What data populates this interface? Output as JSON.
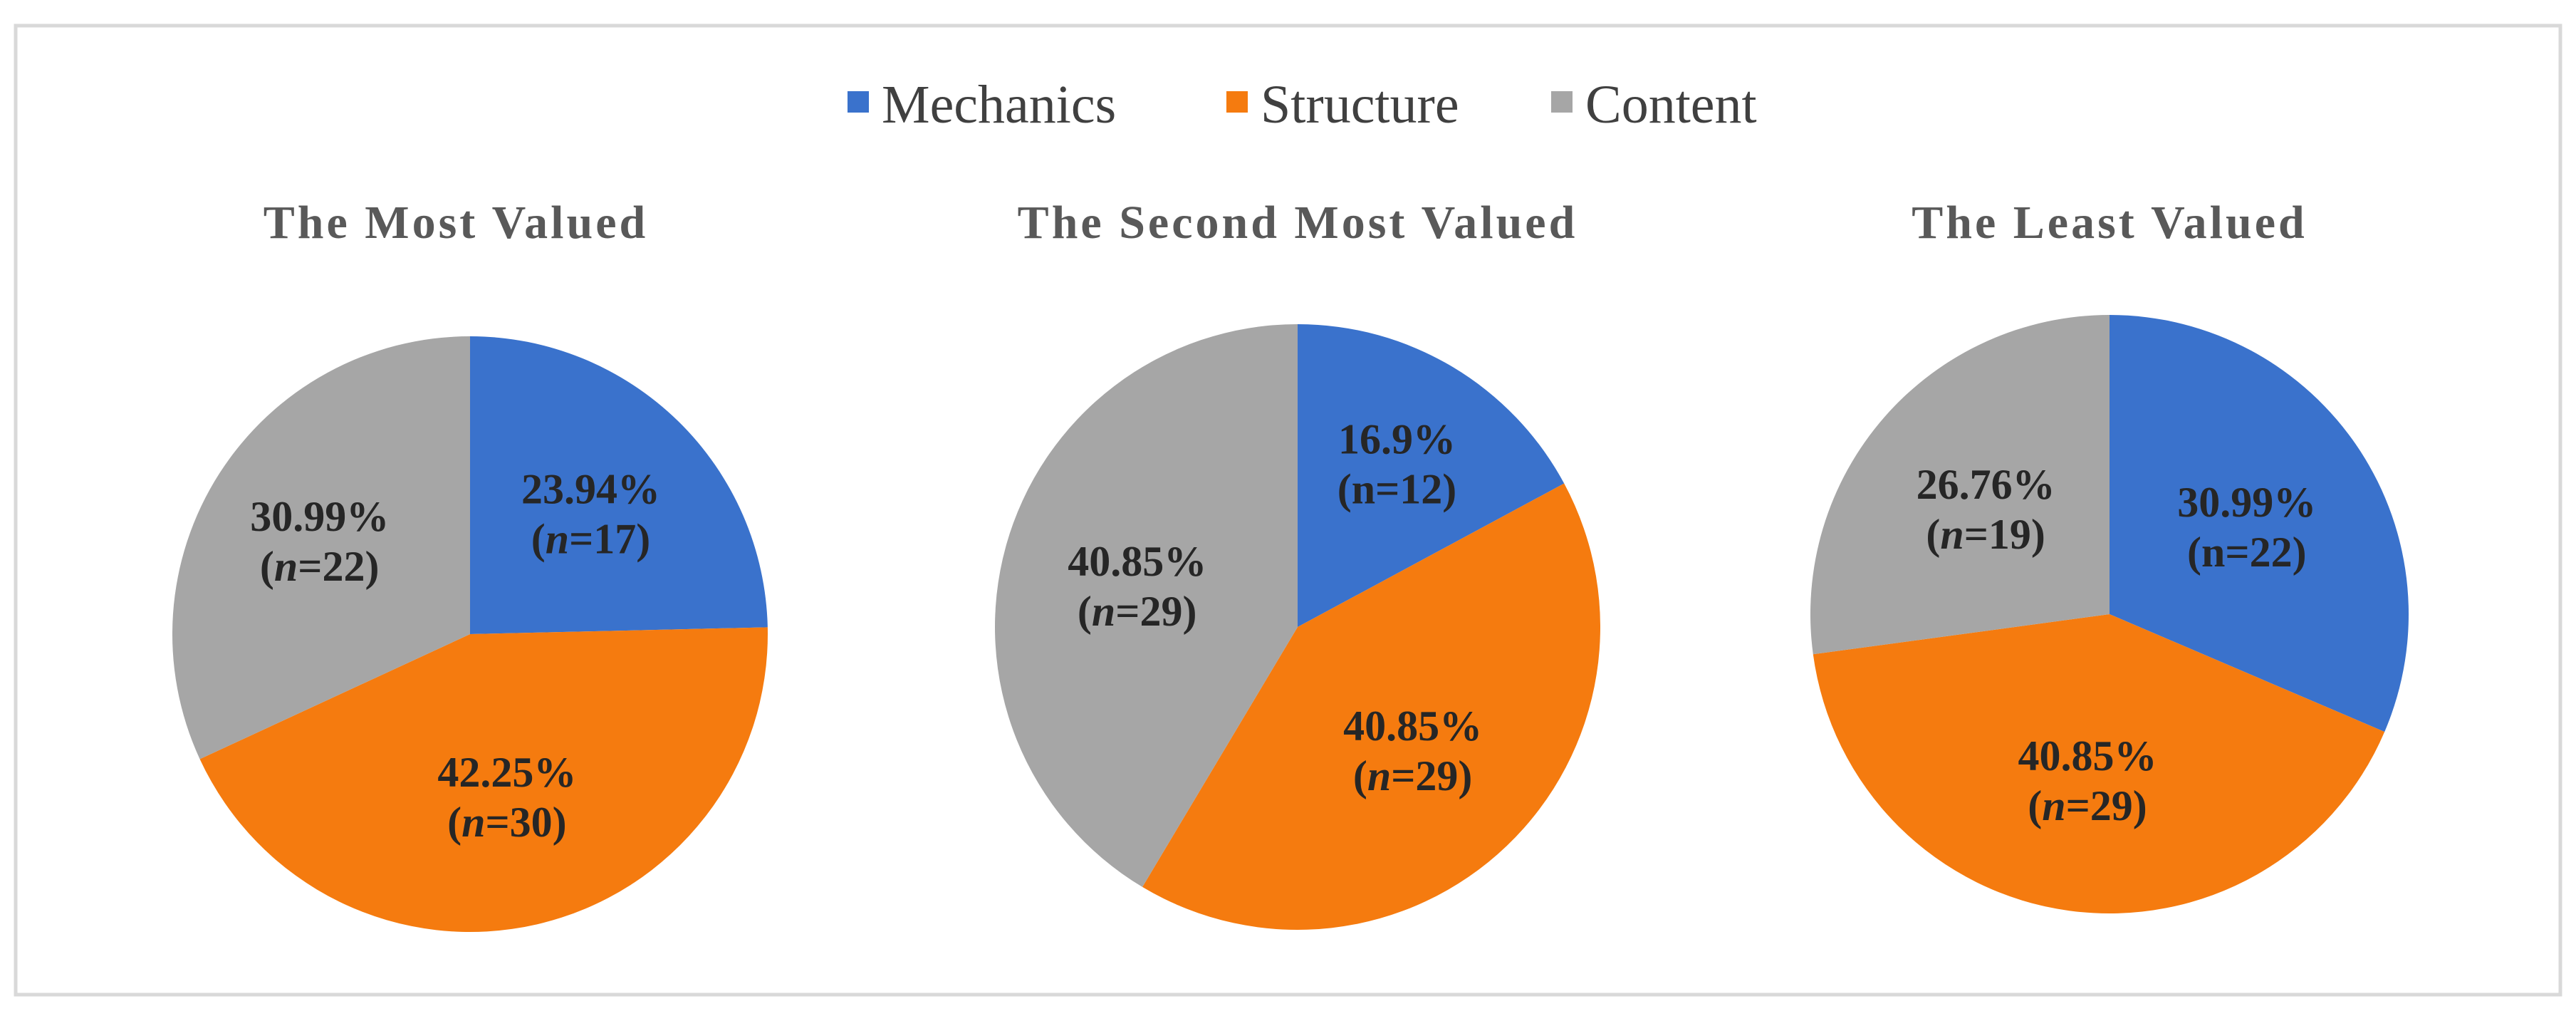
{
  "legend": {
    "placement": "top-center",
    "items": [
      {
        "label": "Mechanics",
        "color": "#3a72cc"
      },
      {
        "label": "Structure",
        "color": "#f57b0f"
      },
      {
        "label": "Content",
        "color": "#a6a6a6"
      }
    ]
  },
  "chart_data": [
    {
      "type": "pie",
      "title": "The Most Valued",
      "categories": [
        "Mechanics",
        "Structure",
        "Content"
      ],
      "values": [
        23.94,
        42.25,
        30.99
      ],
      "counts": [
        17,
        30,
        22
      ],
      "labels": [
        {
          "pct": "23.94%",
          "n": "17"
        },
        {
          "pct": "42.25%",
          "n": "30"
        },
        {
          "pct": "30.99%",
          "n": "22"
        }
      ],
      "label_n_italic": [
        true,
        true,
        true
      ]
    },
    {
      "type": "pie",
      "title": "The Second Most Valued",
      "categories": [
        "Mechanics",
        "Structure",
        "Content"
      ],
      "values": [
        16.9,
        40.85,
        40.85
      ],
      "counts": [
        12,
        29,
        29
      ],
      "labels": [
        {
          "pct": "16.9%",
          "n": "12"
        },
        {
          "pct": "40.85%",
          "n": "29"
        },
        {
          "pct": "40.85%",
          "n": "29"
        }
      ],
      "label_n_italic": [
        false,
        true,
        true
      ]
    },
    {
      "type": "pie",
      "title": "The Least Valued",
      "categories": [
        "Mechanics",
        "Structure",
        "Content"
      ],
      "values": [
        30.99,
        40.85,
        26.76
      ],
      "counts": [
        22,
        29,
        19
      ],
      "labels": [
        {
          "pct": "30.99%",
          "n": "22"
        },
        {
          "pct": "40.85%",
          "n": "29"
        },
        {
          "pct": "26.76%",
          "n": "19"
        }
      ],
      "label_n_italic": [
        false,
        true,
        true
      ]
    }
  ]
}
